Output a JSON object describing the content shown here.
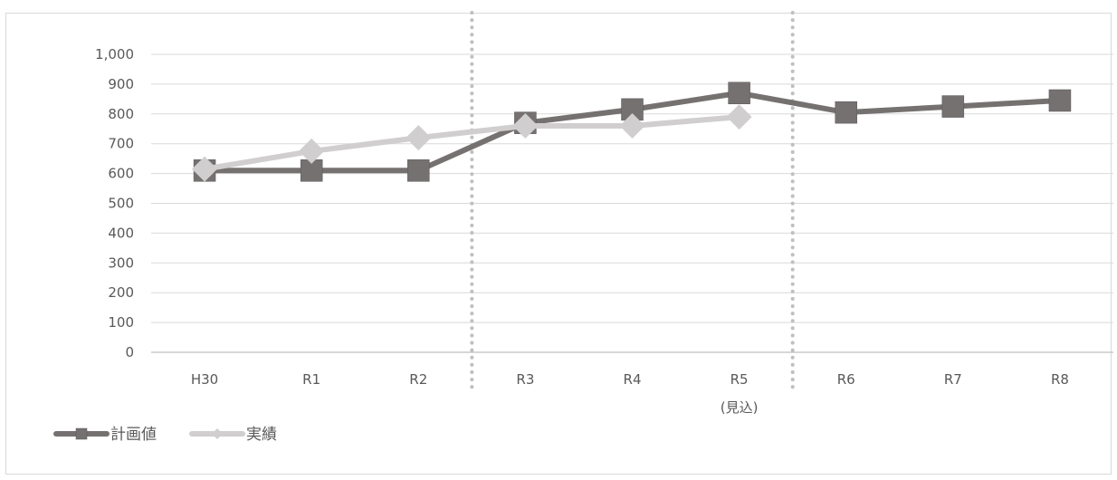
{
  "chart_data": {
    "type": "line",
    "categories": [
      "H30",
      "R1",
      "R2",
      "R3",
      "R4",
      "R5",
      "R6",
      "R7",
      "R8"
    ],
    "category_sublabels": [
      "",
      "",
      "",
      "",
      "",
      "(見込)",
      "",
      "",
      ""
    ],
    "yticks": [
      "0",
      "100",
      "200",
      "300",
      "400",
      "500",
      "600",
      "700",
      "800",
      "900",
      "1,000"
    ],
    "ylim": [
      0,
      1000
    ],
    "grid": true,
    "legend_position": "bottom-left",
    "divider_after_categories": [
      "R2",
      "R5"
    ],
    "series": [
      {
        "name": "計画値",
        "marker": "square",
        "color": "#767171",
        "values": [
          610,
          610,
          610,
          770,
          815,
          870,
          805,
          825,
          845
        ]
      },
      {
        "name": "実績",
        "marker": "diamond",
        "color": "#d0cece",
        "values": [
          615,
          675,
          720,
          760,
          760,
          790,
          null,
          null,
          null
        ]
      }
    ]
  }
}
